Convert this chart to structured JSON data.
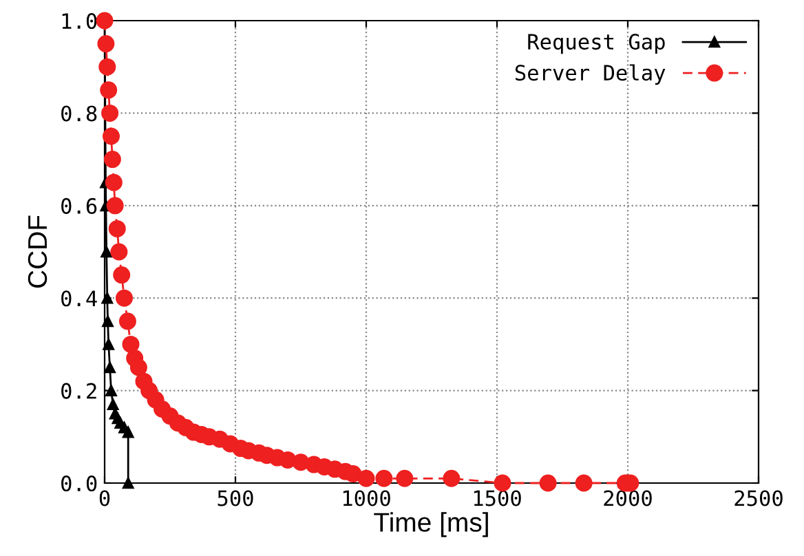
{
  "chart_data": {
    "type": "line",
    "xlabel": "Time [ms]",
    "ylabel": "CCDF",
    "xlim": [
      0,
      2500
    ],
    "xticks": [
      0,
      500,
      1000,
      1500,
      2000,
      2500
    ],
    "ylim": [
      0,
      1.0
    ],
    "yticks": [
      {
        "value": 0,
        "label": "0.0"
      },
      {
        "value": 0.2,
        "label": "0.2"
      },
      {
        "value": 0.4,
        "label": "0.4"
      },
      {
        "value": 0.6,
        "label": "0.6"
      },
      {
        "value": 0.8,
        "label": "0.8"
      },
      {
        "value": 1.0,
        "label": "1.0"
      }
    ],
    "grid": true,
    "legend": "top right",
    "series": [
      {
        "name": "Request Gap",
        "color": "#000000",
        "marker": "triangle",
        "line_style": "solid",
        "x": [
          0,
          4,
          5,
          7,
          10,
          12,
          15,
          20,
          25,
          32,
          40,
          50,
          60,
          75,
          90,
          90
        ],
        "values": [
          1.0,
          0.65,
          0.6,
          0.5,
          0.4,
          0.35,
          0.3,
          0.25,
          0.2,
          0.17,
          0.15,
          0.14,
          0.13,
          0.12,
          0.11,
          0.0
        ]
      },
      {
        "name": "Server Delay",
        "color": "#ee2020",
        "marker": "circle",
        "line_style": "dashed",
        "x": [
          0,
          5,
          10,
          15,
          20,
          25,
          30,
          35,
          40,
          48,
          55,
          65,
          75,
          88,
          100,
          115,
          130,
          150,
          170,
          195,
          220,
          250,
          280,
          310,
          340,
          370,
          400,
          440,
          480,
          520,
          550,
          590,
          620,
          660,
          700,
          750,
          800,
          840,
          880,
          920,
          950,
          1000,
          1068,
          1147,
          1326,
          1521,
          1695,
          1832,
          1990,
          2000,
          2010
        ],
        "values": [
          1.0,
          0.95,
          0.9,
          0.85,
          0.8,
          0.75,
          0.7,
          0.65,
          0.6,
          0.55,
          0.5,
          0.45,
          0.4,
          0.35,
          0.3,
          0.27,
          0.25,
          0.22,
          0.2,
          0.18,
          0.16,
          0.145,
          0.13,
          0.12,
          0.11,
          0.105,
          0.1,
          0.095,
          0.085,
          0.075,
          0.07,
          0.065,
          0.06,
          0.055,
          0.05,
          0.045,
          0.04,
          0.035,
          0.03,
          0.025,
          0.02,
          0.01,
          0.01,
          0.01,
          0.01,
          0.0,
          0.0,
          0.0,
          0.0,
          0.0,
          0.0
        ]
      }
    ]
  }
}
